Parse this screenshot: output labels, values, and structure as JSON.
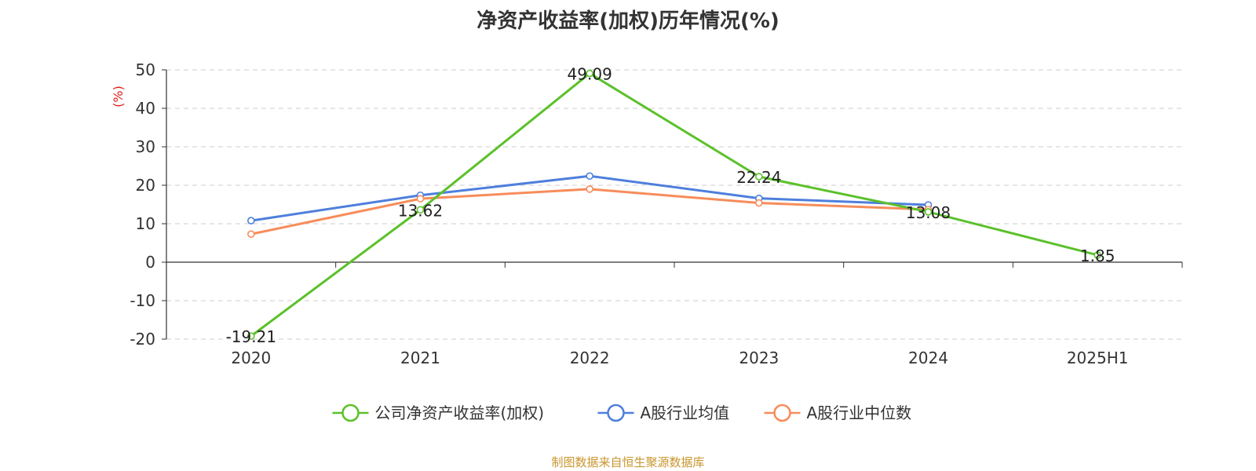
{
  "title": "净资产收益率(加权)历年情况(%)",
  "source": "制图数据来自恒生聚源数据库",
  "colors": {
    "company": "#5bc12a",
    "avg": "#4e7fdc",
    "median": "#f78c5a",
    "axis": "#333333",
    "grid": "#cccccc",
    "ylabel": "#e0201b"
  },
  "chart_data": {
    "type": "line",
    "categories": [
      "2020",
      "2021",
      "2022",
      "2023",
      "2024",
      "2025H1"
    ],
    "ylabel": "(%)",
    "ylim": [
      -20,
      50
    ],
    "yticks": [
      -20,
      -10,
      0,
      10,
      20,
      30,
      40,
      50
    ],
    "grid": true,
    "legend_position": "bottom",
    "series": [
      {
        "name": "公司净资产收益率(加权)",
        "color": "#5bc12a",
        "values": [
          -19.21,
          13.62,
          49.09,
          22.24,
          13.08,
          1.85
        ],
        "labels": [
          "-19.21",
          "13.62",
          "49.09",
          "22.24",
          "13.08",
          "1.85"
        ]
      },
      {
        "name": "A股行业均值",
        "color": "#4e7fdc",
        "values": [
          10.8,
          17.4,
          22.4,
          16.6,
          14.9,
          null
        ]
      },
      {
        "name": "A股行业中位数",
        "color": "#f78c5a",
        "values": [
          7.3,
          16.5,
          19.0,
          15.4,
          13.7,
          null
        ]
      }
    ]
  }
}
